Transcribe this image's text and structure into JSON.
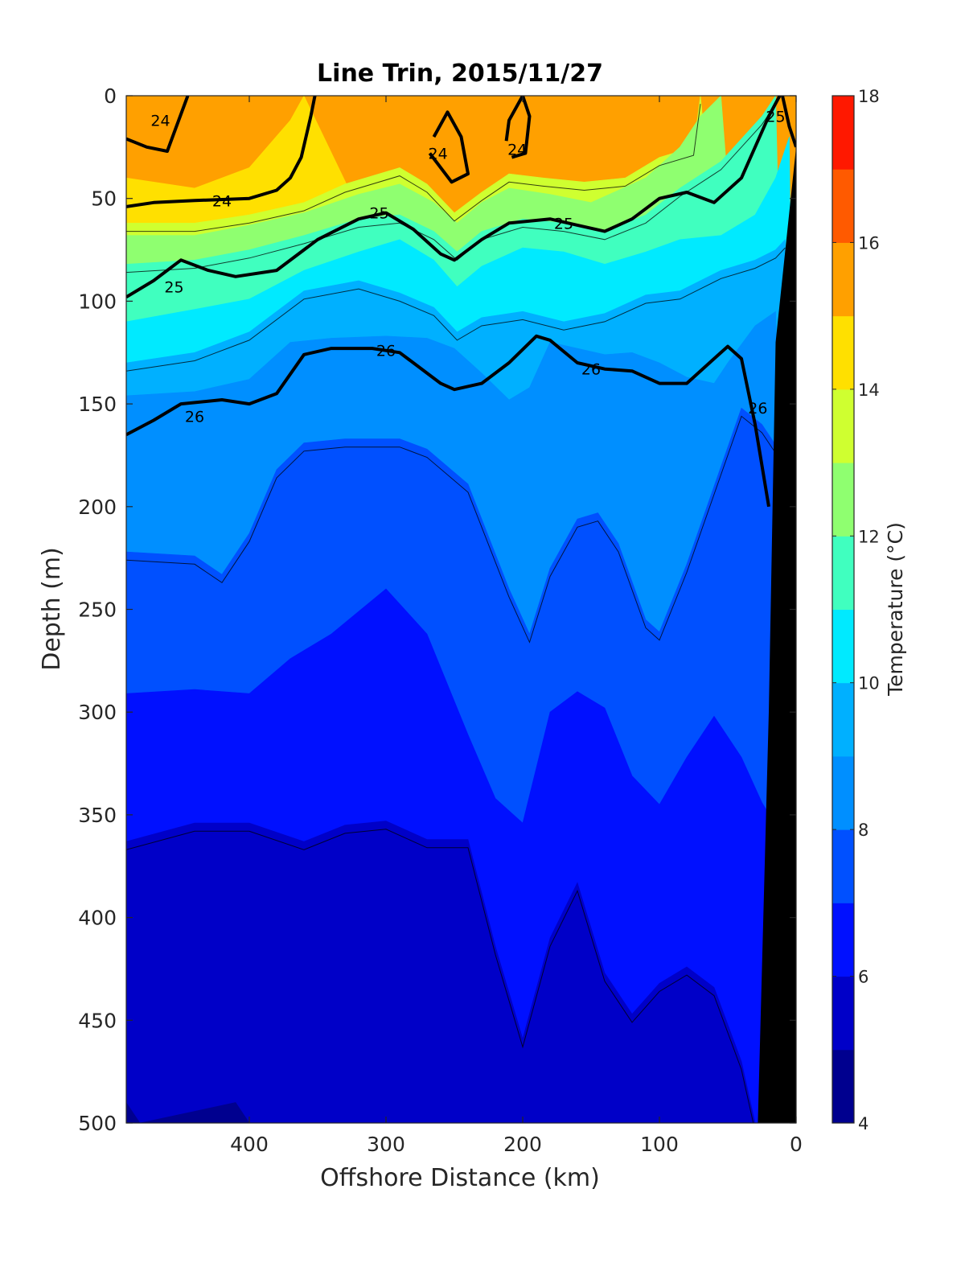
{
  "chart_data": {
    "type": "contour",
    "title": "Line Trin, 2015/11/27",
    "xlabel": "Offshore Distance (km)",
    "ylabel": "Depth (m)",
    "xlim": [
      490,
      0
    ],
    "ylim": [
      0,
      500
    ],
    "x_reversed": true,
    "y_reversed": true,
    "x_ticks": [
      400,
      300,
      200,
      100,
      0
    ],
    "y_ticks": [
      0,
      50,
      100,
      150,
      200,
      250,
      300,
      350,
      400,
      450,
      500
    ],
    "colorbar": {
      "label": "Temperature (°C)",
      "range": [
        4,
        18
      ],
      "ticks": [
        4,
        6,
        8,
        10,
        12,
        14,
        16,
        18
      ],
      "levels": [
        4,
        5,
        6,
        7,
        8,
        9,
        10,
        11,
        12,
        13,
        14,
        15,
        16,
        17,
        18
      ],
      "colors": [
        "#00008f",
        "#0000c8",
        "#0010ff",
        "#0050ff",
        "#008fff",
        "#00b0ff",
        "#00eaff",
        "#40ffbf",
        "#8fff70",
        "#cfff30",
        "#ffe000",
        "#ffa000",
        "#ff5a00",
        "#ff1800",
        "#c80000"
      ]
    },
    "temperature_bands": [
      {
        "range": "15-17",
        "upper_boundary": [
          [
            490,
            0
          ],
          [
            0,
            0
          ]
        ]
      },
      {
        "range": "14-15",
        "upper_boundary": [
          [
            490,
            40
          ],
          [
            440,
            45
          ],
          [
            400,
            35
          ],
          [
            370,
            12
          ],
          [
            360,
            0
          ]
        ]
      },
      {
        "range": "13-14",
        "upper_boundary": [
          [
            490,
            62
          ],
          [
            440,
            62
          ],
          [
            400,
            58
          ],
          [
            360,
            52
          ],
          [
            330,
            43
          ],
          [
            290,
            35
          ],
          [
            270,
            43
          ],
          [
            250,
            57
          ],
          [
            230,
            47
          ],
          [
            210,
            38
          ],
          [
            185,
            40
          ],
          [
            155,
            42
          ],
          [
            125,
            40
          ],
          [
            100,
            30
          ],
          [
            75,
            25
          ],
          [
            70,
            0
          ]
        ]
      },
      {
        "range": "12-13",
        "upper_boundary": [
          [
            490,
            68
          ],
          [
            440,
            68
          ],
          [
            400,
            63
          ],
          [
            360,
            57
          ],
          [
            320,
            48
          ],
          [
            290,
            43
          ],
          [
            265,
            52
          ],
          [
            248,
            62
          ],
          [
            230,
            52
          ],
          [
            210,
            45
          ],
          [
            180,
            48
          ],
          [
            150,
            52
          ],
          [
            110,
            40
          ],
          [
            85,
            25
          ],
          [
            70,
            10
          ],
          [
            55,
            0
          ]
        ]
      },
      {
        "range": "11-12",
        "upper_boundary": [
          [
            490,
            82
          ],
          [
            440,
            80
          ],
          [
            400,
            75
          ],
          [
            360,
            68
          ],
          [
            320,
            60
          ],
          [
            290,
            58
          ],
          [
            265,
            66
          ],
          [
            248,
            76
          ],
          [
            230,
            66
          ],
          [
            200,
            60
          ],
          [
            170,
            62
          ],
          [
            140,
            66
          ],
          [
            110,
            58
          ],
          [
            85,
            45
          ],
          [
            55,
            32
          ],
          [
            25,
            10
          ],
          [
            15,
            0
          ]
        ]
      },
      {
        "range": "10-11",
        "upper_boundary": [
          [
            490,
            110
          ],
          [
            440,
            104
          ],
          [
            400,
            99
          ],
          [
            360,
            85
          ],
          [
            320,
            76
          ],
          [
            290,
            70
          ],
          [
            265,
            80
          ],
          [
            248,
            93
          ],
          [
            230,
            83
          ],
          [
            200,
            74
          ],
          [
            170,
            76
          ],
          [
            140,
            82
          ],
          [
            110,
            76
          ],
          [
            85,
            70
          ],
          [
            55,
            68
          ],
          [
            30,
            58
          ],
          [
            15,
            40
          ],
          [
            5,
            20
          ]
        ]
      },
      {
        "range": "9-10",
        "upper_boundary": [
          [
            490,
            130
          ],
          [
            440,
            125
          ],
          [
            400,
            115
          ],
          [
            360,
            95
          ],
          [
            320,
            90
          ],
          [
            290,
            96
          ],
          [
            265,
            103
          ],
          [
            248,
            115
          ],
          [
            230,
            108
          ],
          [
            200,
            105
          ],
          [
            170,
            110
          ],
          [
            140,
            106
          ],
          [
            110,
            97
          ],
          [
            85,
            95
          ],
          [
            55,
            85
          ],
          [
            30,
            80
          ],
          [
            15,
            75
          ],
          [
            8,
            70
          ]
        ]
      },
      {
        "range": "8-9",
        "upper_boundary": [
          [
            490,
            146
          ],
          [
            440,
            144
          ],
          [
            400,
            138
          ],
          [
            370,
            120
          ],
          [
            340,
            118
          ],
          [
            300,
            117
          ],
          [
            270,
            118
          ],
          [
            250,
            123
          ],
          [
            230,
            135
          ],
          [
            210,
            148
          ],
          [
            195,
            142
          ],
          [
            180,
            120
          ],
          [
            160,
            123
          ],
          [
            140,
            126
          ],
          [
            120,
            125
          ],
          [
            100,
            130
          ],
          [
            80,
            137
          ],
          [
            60,
            140
          ],
          [
            50,
            130
          ],
          [
            30,
            112
          ],
          [
            15,
            105
          ]
        ]
      },
      {
        "range": "7-8",
        "upper_boundary": [
          [
            490,
            222
          ],
          [
            440,
            224
          ],
          [
            420,
            233
          ],
          [
            400,
            213
          ],
          [
            380,
            182
          ],
          [
            360,
            169
          ],
          [
            330,
            167
          ],
          [
            290,
            167
          ],
          [
            270,
            172
          ],
          [
            240,
            189
          ],
          [
            210,
            240
          ],
          [
            195,
            262
          ],
          [
            180,
            230
          ],
          [
            160,
            206
          ],
          [
            145,
            203
          ],
          [
            130,
            218
          ],
          [
            110,
            255
          ],
          [
            100,
            261
          ],
          [
            80,
            228
          ],
          [
            60,
            190
          ],
          [
            40,
            152
          ],
          [
            25,
            160
          ],
          [
            15,
            170
          ]
        ]
      },
      {
        "range": "6-7",
        "upper_boundary": [
          [
            490,
            291
          ],
          [
            440,
            289
          ],
          [
            400,
            291
          ],
          [
            370,
            274
          ],
          [
            340,
            262
          ],
          [
            300,
            240
          ],
          [
            270,
            262
          ],
          [
            240,
            311
          ],
          [
            220,
            342
          ],
          [
            200,
            354
          ],
          [
            180,
            300
          ],
          [
            160,
            290
          ],
          [
            140,
            298
          ],
          [
            120,
            331
          ],
          [
            100,
            345
          ],
          [
            80,
            322
          ],
          [
            60,
            302
          ],
          [
            40,
            322
          ],
          [
            25,
            344
          ],
          [
            15,
            355
          ]
        ]
      },
      {
        "range": "5-6",
        "upper_boundary": [
          [
            490,
            363
          ],
          [
            440,
            354
          ],
          [
            400,
            354
          ],
          [
            360,
            363
          ],
          [
            330,
            355
          ],
          [
            300,
            353
          ],
          [
            270,
            362
          ],
          [
            240,
            362
          ],
          [
            220,
            414
          ],
          [
            200,
            459
          ],
          [
            180,
            410
          ],
          [
            160,
            383
          ],
          [
            140,
            427
          ],
          [
            120,
            447
          ],
          [
            100,
            432
          ],
          [
            80,
            424
          ],
          [
            60,
            434
          ],
          [
            40,
            470
          ],
          [
            30,
            500
          ]
        ]
      },
      {
        "range": "4-5",
        "upper_boundary": [
          [
            490,
            490
          ],
          [
            480,
            500
          ],
          [
            410,
            490
          ],
          [
            400,
            500
          ],
          [
            395,
            500
          ]
        ]
      }
    ],
    "density_contours": [
      {
        "level": 24,
        "points": [
          [
            490,
            21
          ],
          [
            475,
            25
          ],
          [
            460,
            27
          ],
          [
            445,
            0
          ]
        ]
      },
      {
        "level": 24,
        "points": [
          [
            490,
            54
          ],
          [
            470,
            52
          ],
          [
            440,
            51
          ],
          [
            400,
            50
          ],
          [
            380,
            46
          ],
          [
            370,
            40
          ],
          [
            362,
            30
          ],
          [
            355,
            10
          ],
          [
            352,
            0
          ]
        ]
      },
      {
        "level": 24,
        "points": [
          [
            265,
            20
          ],
          [
            255,
            8
          ],
          [
            245,
            20
          ],
          [
            240,
            38
          ],
          [
            252,
            42
          ],
          [
            268,
            28
          ]
        ]
      },
      {
        "level": 24,
        "points": [
          [
            208,
            30
          ],
          [
            198,
            28
          ],
          [
            195,
            10
          ],
          [
            200,
            0
          ],
          [
            210,
            12
          ],
          [
            212,
            22
          ]
        ]
      },
      {
        "level": 25,
        "points": [
          [
            490,
            98
          ],
          [
            470,
            90
          ],
          [
            450,
            80
          ],
          [
            430,
            85
          ],
          [
            410,
            88
          ],
          [
            380,
            85
          ],
          [
            350,
            70
          ],
          [
            320,
            60
          ],
          [
            300,
            57
          ],
          [
            280,
            65
          ],
          [
            260,
            77
          ],
          [
            250,
            80
          ],
          [
            230,
            70
          ],
          [
            210,
            62
          ],
          [
            180,
            60
          ],
          [
            160,
            63
          ],
          [
            140,
            66
          ],
          [
            120,
            60
          ],
          [
            100,
            50
          ],
          [
            80,
            47
          ],
          [
            60,
            52
          ],
          [
            40,
            40
          ],
          [
            20,
            10
          ],
          [
            12,
            0
          ]
        ]
      },
      {
        "level": 25,
        "points": [
          [
            10,
            0
          ],
          [
            5,
            15
          ],
          [
            0,
            25
          ]
        ]
      },
      {
        "level": 26,
        "points": [
          [
            490,
            165
          ],
          [
            470,
            158
          ],
          [
            450,
            150
          ],
          [
            420,
            148
          ],
          [
            400,
            150
          ],
          [
            380,
            145
          ],
          [
            360,
            126
          ],
          [
            340,
            123
          ],
          [
            310,
            123
          ],
          [
            290,
            125
          ],
          [
            260,
            140
          ],
          [
            250,
            143
          ],
          [
            230,
            140
          ],
          [
            210,
            130
          ],
          [
            190,
            117
          ],
          [
            180,
            119
          ],
          [
            160,
            130
          ],
          [
            140,
            133
          ],
          [
            120,
            134
          ],
          [
            100,
            140
          ],
          [
            80,
            140
          ],
          [
            60,
            128
          ],
          [
            50,
            122
          ],
          [
            40,
            128
          ],
          [
            30,
            160
          ],
          [
            20,
            200
          ]
        ]
      }
    ],
    "contour_labels": [
      "24",
      "24",
      "24",
      "24",
      "25",
      "25",
      "25",
      "25",
      "26",
      "26",
      "26",
      "26"
    ],
    "seafloor_mask": {
      "color": "#000000",
      "boundary": [
        [
          28,
          500
        ],
        [
          20,
          300
        ],
        [
          15,
          120
        ],
        [
          0,
          25
        ]
      ]
    }
  }
}
